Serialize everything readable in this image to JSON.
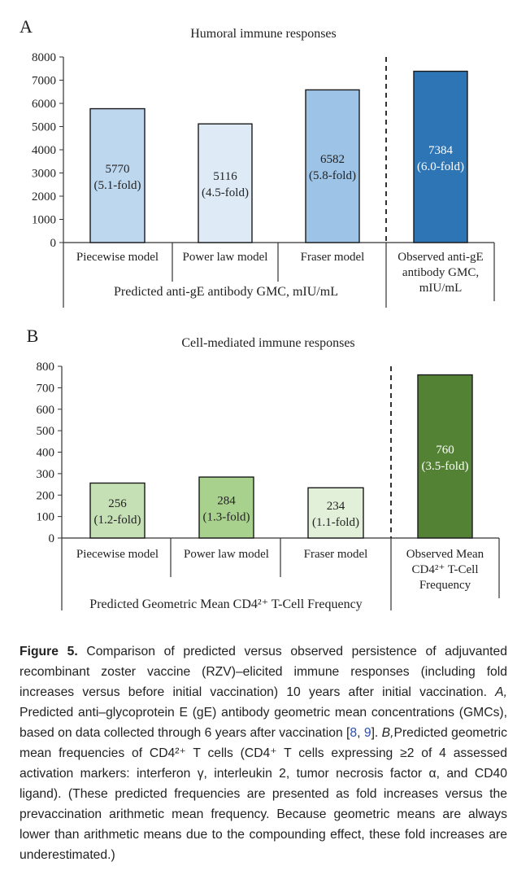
{
  "chart_data": [
    {
      "type": "bar",
      "panel_label": "A",
      "title": "Humoral immune responses",
      "ylim": [
        0,
        8000
      ],
      "yticks": [
        "0",
        "1000",
        "2000",
        "3000",
        "4000",
        "5000",
        "6000",
        "7000",
        "8000"
      ],
      "categories": [
        [
          "Piecewise model"
        ],
        [
          "Power law model"
        ],
        [
          "Fraser model"
        ],
        [
          "Observed anti-gE",
          "antibody GMC,",
          "mIU/mL"
        ]
      ],
      "values": [
        5770,
        5116,
        6582,
        7384
      ],
      "value_labels": [
        "5770",
        "5116",
        "6582",
        "7384"
      ],
      "fold_labels": [
        "(5.1-fold)",
        "(4.5-fold)",
        "(5.8-fold)",
        "(6.0-fold)"
      ],
      "colors": [
        "#bdd7ee",
        "#deebf7",
        "#9dc3e6",
        "#2e75b6"
      ],
      "label_colors": [
        "#222222",
        "#222222",
        "#222222",
        "#ffffff"
      ],
      "group_label": "Predicted anti-gE antibody GMC, mIU/mL"
    },
    {
      "type": "bar",
      "panel_label": "B",
      "title": "Cell-mediated immune responses",
      "ylim": [
        0,
        800
      ],
      "yticks": [
        "0",
        "100",
        "200",
        "300",
        "400",
        "500",
        "600",
        "700",
        "800"
      ],
      "categories": [
        [
          "Piecewise model"
        ],
        [
          "Power law model"
        ],
        [
          "Fraser model"
        ],
        [
          "Observed Mean",
          "CD4²⁺ T-Cell",
          "Frequency"
        ]
      ],
      "values": [
        256,
        284,
        234,
        760
      ],
      "value_labels": [
        "256",
        "284",
        "234",
        "760"
      ],
      "fold_labels": [
        "(1.2-fold)",
        "(1.3-fold)",
        "(1.1-fold)",
        "(3.5-fold)"
      ],
      "colors": [
        "#c5e0b4",
        "#a9d18e",
        "#e2f0d9",
        "#548235"
      ],
      "label_colors": [
        "#222222",
        "#222222",
        "#222222",
        "#ffffff"
      ],
      "group_label": "Predicted Geometric Mean CD4²⁺ T-Cell Frequency"
    }
  ],
  "caption": {
    "figure_label": "Figure 5.",
    "text_1": "Comparison of predicted versus observed persistence of adjuvanted recombinant zoster vaccine (RZV)–elicited immune responses (including fold increases versus before initial vaccination) 10 years after initial vaccination.",
    "label_a": "A,",
    "text_2": "Predicted anti–glycoprotein E (gE) antibody geometric mean concentrations (GMCs), based on data collected through 6 years after vaccination [",
    "ref_1": "8",
    "ref_sep": ", ",
    "ref_2": "9",
    "text_3": "].",
    "label_b": "B,",
    "text_4": "Predicted geometric mean frequencies of CD4²⁺ T cells (CD4⁺ T cells expressing ≥2 of 4 assessed activation markers: interferon γ, interleukin 2, tumor necrosis factor α, and CD40 ligand). (These predicted frequencies are presented as fold increases versus the prevaccination arithmetic mean frequency. Because geometric means are always lower than arithmetic means due to the compounding effect, these fold increases are underestimated.)"
  }
}
